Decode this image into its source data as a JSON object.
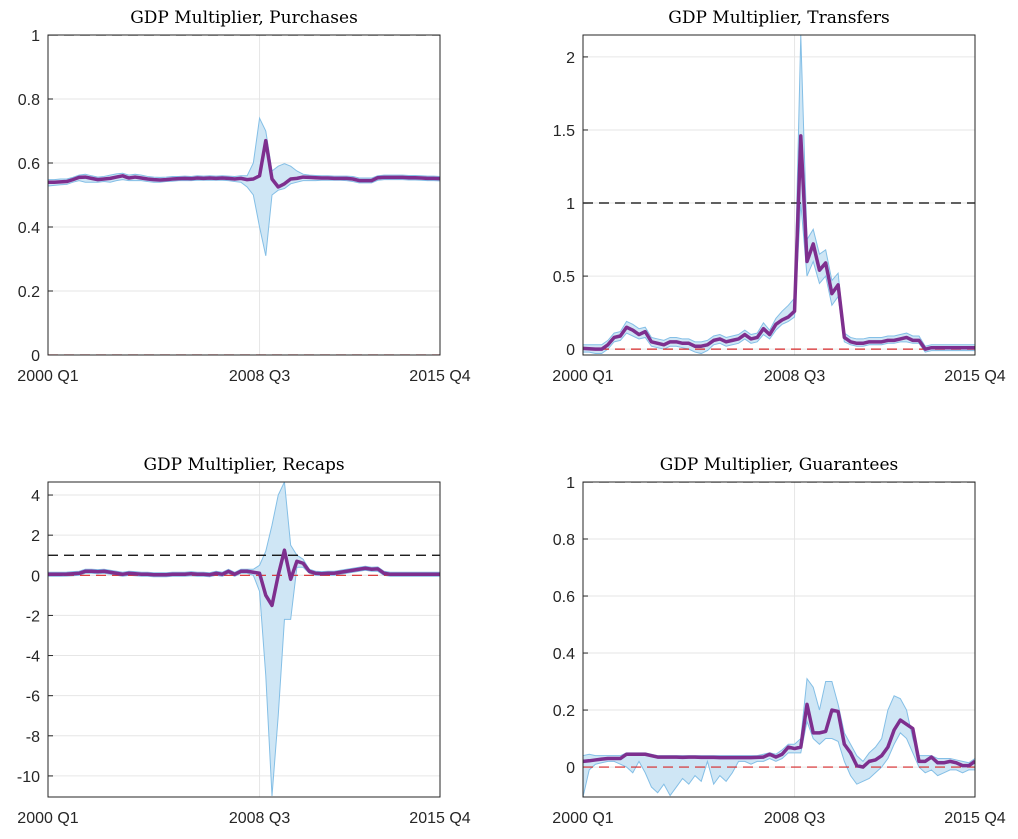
{
  "chart_data": [
    {
      "type": "line",
      "title": "GDP Multiplier, Purchases",
      "categories": [
        "2000 Q1",
        null,
        null,
        null,
        null,
        null,
        null,
        null,
        null,
        null,
        null,
        null,
        null,
        null,
        null,
        null,
        null,
        null,
        null,
        null,
        null,
        null,
        null,
        null,
        null,
        null,
        null,
        null,
        null,
        null,
        null,
        null,
        null,
        null,
        "2008 Q3",
        null,
        null,
        null,
        null,
        null,
        null,
        null,
        null,
        null,
        null,
        null,
        null,
        null,
        null,
        null,
        null,
        null,
        null,
        null,
        null,
        null,
        null,
        null,
        null,
        null,
        null,
        null,
        null,
        "2015 Q4"
      ],
      "ylim": [
        0,
        1
      ],
      "yticks": [
        0,
        0.2,
        0.4,
        0.6,
        0.8,
        1
      ],
      "grid": true,
      "series": [
        {
          "color": "#7e2f8e",
          "values": [
            0.54,
            0.54,
            0.541,
            0.542,
            0.548,
            0.555,
            0.556,
            0.552,
            0.548,
            0.55,
            0.552,
            0.556,
            0.56,
            0.553,
            0.556,
            0.553,
            0.55,
            0.548,
            0.547,
            0.548,
            0.55,
            0.551,
            0.552,
            0.551,
            0.553,
            0.552,
            0.553,
            0.552,
            0.553,
            0.552,
            0.55,
            0.552,
            0.548,
            0.55,
            0.56,
            0.67,
            0.55,
            0.525,
            0.535,
            0.55,
            0.552,
            0.556,
            0.555,
            0.554,
            0.553,
            0.553,
            0.552,
            0.552,
            0.552,
            0.55,
            0.545,
            0.545,
            0.545,
            0.554,
            0.555,
            0.555,
            0.555,
            0.555,
            0.554,
            0.554,
            0.553,
            0.552,
            0.552,
            0.551
          ]
        }
      ],
      "band": {
        "color": "#cfe6f5",
        "edge_color": "#84bfe6",
        "lower": [
          0.528,
          0.53,
          0.532,
          0.533,
          0.54,
          0.545,
          0.54,
          0.54,
          0.54,
          0.542,
          0.54,
          0.545,
          0.548,
          0.545,
          0.545,
          0.545,
          0.542,
          0.54,
          0.54,
          0.542,
          0.543,
          0.545,
          0.545,
          0.545,
          0.546,
          0.546,
          0.546,
          0.546,
          0.546,
          0.545,
          0.542,
          0.54,
          0.525,
          0.5,
          0.4,
          0.31,
          0.5,
          0.515,
          0.52,
          0.535,
          0.54,
          0.545,
          0.545,
          0.545,
          0.546,
          0.546,
          0.546,
          0.546,
          0.545,
          0.542,
          0.538,
          0.538,
          0.538,
          0.546,
          0.548,
          0.548,
          0.548,
          0.548,
          0.547,
          0.547,
          0.546,
          0.545,
          0.545,
          0.544
        ],
        "upper": [
          0.548,
          0.548,
          0.55,
          0.55,
          0.555,
          0.562,
          0.565,
          0.56,
          0.556,
          0.558,
          0.562,
          0.566,
          0.568,
          0.562,
          0.565,
          0.562,
          0.558,
          0.556,
          0.555,
          0.556,
          0.558,
          0.558,
          0.559,
          0.558,
          0.56,
          0.559,
          0.56,
          0.559,
          0.56,
          0.559,
          0.558,
          0.56,
          0.56,
          0.6,
          0.74,
          0.7,
          0.575,
          0.59,
          0.598,
          0.59,
          0.575,
          0.565,
          0.562,
          0.561,
          0.56,
          0.56,
          0.559,
          0.559,
          0.559,
          0.558,
          0.553,
          0.553,
          0.553,
          0.56,
          0.562,
          0.562,
          0.562,
          0.562,
          0.561,
          0.561,
          0.56,
          0.559,
          0.559,
          0.558
        ]
      },
      "reference_lines": [
        {
          "value": 1,
          "color": "#000000"
        },
        {
          "value": 0,
          "color": "#d62728"
        }
      ]
    },
    {
      "type": "line",
      "title": "GDP Multiplier, Transfers",
      "categories": [
        "2000 Q1",
        null,
        null,
        null,
        null,
        null,
        null,
        null,
        null,
        null,
        null,
        null,
        null,
        null,
        null,
        null,
        null,
        null,
        null,
        null,
        null,
        null,
        null,
        null,
        null,
        null,
        null,
        null,
        null,
        null,
        null,
        null,
        null,
        null,
        "2008 Q3",
        null,
        null,
        null,
        null,
        null,
        null,
        null,
        null,
        null,
        null,
        null,
        null,
        null,
        null,
        null,
        null,
        null,
        null,
        null,
        null,
        null,
        null,
        null,
        null,
        null,
        null,
        null,
        null,
        "2015 Q4"
      ],
      "ylim": [
        -0.04,
        2.15
      ],
      "yticks": [
        0,
        0.5,
        1,
        1.5,
        2
      ],
      "grid": true,
      "series": [
        {
          "color": "#7e2f8e",
          "values": [
            0.005,
            0.003,
            0.0,
            0.0,
            0.03,
            0.08,
            0.09,
            0.15,
            0.13,
            0.1,
            0.12,
            0.05,
            0.04,
            0.03,
            0.05,
            0.05,
            0.04,
            0.04,
            0.02,
            0.02,
            0.03,
            0.06,
            0.07,
            0.05,
            0.06,
            0.07,
            0.1,
            0.07,
            0.08,
            0.14,
            0.1,
            0.17,
            0.2,
            0.22,
            0.26,
            1.46,
            0.6,
            0.72,
            0.54,
            0.59,
            0.38,
            0.44,
            0.08,
            0.05,
            0.04,
            0.04,
            0.05,
            0.05,
            0.05,
            0.06,
            0.06,
            0.07,
            0.08,
            0.06,
            0.06,
            0.0,
            0.01,
            0.01,
            0.01,
            0.01,
            0.01,
            0.01,
            0.01,
            0.01
          ]
        }
      ],
      "band": {
        "color": "#cfe6f5",
        "edge_color": "#84bfe6",
        "lower": [
          -0.02,
          -0.02,
          -0.03,
          -0.03,
          0.0,
          0.05,
          0.06,
          0.11,
          0.09,
          0.07,
          0.08,
          0.02,
          0.01,
          0.0,
          0.02,
          0.02,
          0.01,
          0.0,
          -0.02,
          -0.03,
          -0.01,
          0.03,
          0.04,
          0.02,
          0.03,
          0.04,
          0.07,
          0.04,
          0.05,
          0.1,
          0.07,
          0.13,
          0.17,
          0.19,
          0.22,
          1.0,
          0.5,
          0.6,
          0.45,
          0.5,
          0.3,
          0.36,
          0.05,
          0.03,
          0.02,
          0.02,
          0.03,
          0.03,
          0.03,
          0.04,
          0.04,
          0.05,
          0.05,
          0.04,
          0.04,
          -0.02,
          -0.01,
          -0.01,
          -0.01,
          -0.01,
          -0.01,
          -0.01,
          -0.01,
          -0.01
        ],
        "upper": [
          0.03,
          0.03,
          0.03,
          0.03,
          0.06,
          0.11,
          0.12,
          0.19,
          0.17,
          0.14,
          0.15,
          0.08,
          0.07,
          0.06,
          0.08,
          0.08,
          0.07,
          0.07,
          0.05,
          0.05,
          0.06,
          0.09,
          0.1,
          0.08,
          0.09,
          0.1,
          0.13,
          0.1,
          0.11,
          0.18,
          0.13,
          0.21,
          0.26,
          0.3,
          0.35,
          2.15,
          0.75,
          0.82,
          0.65,
          0.68,
          0.47,
          0.52,
          0.11,
          0.08,
          0.07,
          0.07,
          0.08,
          0.08,
          0.08,
          0.09,
          0.09,
          0.1,
          0.11,
          0.09,
          0.09,
          0.02,
          0.03,
          0.03,
          0.03,
          0.03,
          0.03,
          0.03,
          0.03,
          0.03
        ]
      },
      "reference_lines": [
        {
          "value": 1,
          "color": "#000000"
        },
        {
          "value": 0,
          "color": "#d62728"
        }
      ]
    },
    {
      "type": "line",
      "title": "GDP Multiplier, Recaps",
      "categories": [
        "2000 Q1",
        null,
        null,
        null,
        null,
        null,
        null,
        null,
        null,
        null,
        null,
        null,
        null,
        null,
        null,
        null,
        null,
        null,
        null,
        null,
        null,
        null,
        null,
        null,
        null,
        null,
        null,
        null,
        null,
        null,
        null,
        null,
        null,
        null,
        "2008 Q3",
        null,
        null,
        null,
        null,
        null,
        null,
        null,
        null,
        null,
        null,
        null,
        null,
        null,
        null,
        null,
        null,
        null,
        null,
        null,
        null,
        null,
        null,
        null,
        null,
        null,
        null,
        null,
        null,
        "2015 Q4"
      ],
      "ylim": [
        -11.05,
        4.65
      ],
      "yticks": [
        -10,
        -8,
        -6,
        -4,
        -2,
        0,
        2,
        4
      ],
      "grid": true,
      "series": [
        {
          "color": "#7e2f8e",
          "values": [
            0.05,
            0.05,
            0.05,
            0.06,
            0.08,
            0.1,
            0.2,
            0.2,
            0.18,
            0.2,
            0.15,
            0.1,
            0.05,
            0.1,
            0.08,
            0.05,
            0.05,
            0.03,
            0.03,
            0.03,
            0.05,
            0.05,
            0.05,
            0.08,
            0.05,
            0.05,
            0.03,
            0.1,
            0.05,
            0.2,
            0.05,
            0.2,
            0.2,
            0.15,
            0.1,
            -1.0,
            -1.5,
            0.0,
            1.25,
            -0.2,
            0.7,
            0.6,
            0.2,
            0.1,
            0.08,
            0.1,
            0.1,
            0.15,
            0.2,
            0.25,
            0.3,
            0.35,
            0.3,
            0.32,
            0.1,
            0.05,
            0.05,
            0.05,
            0.05,
            0.05,
            0.05,
            0.05,
            0.05,
            0.05
          ]
        }
      ],
      "band": {
        "color": "#cfe6f5",
        "edge_color": "#84bfe6",
        "lower": [
          -0.05,
          -0.05,
          -0.05,
          -0.04,
          -0.02,
          0.0,
          0.1,
          0.1,
          0.08,
          0.1,
          0.05,
          0.0,
          -0.05,
          0.0,
          -0.02,
          -0.05,
          -0.05,
          -0.07,
          -0.07,
          -0.07,
          -0.05,
          -0.05,
          -0.05,
          -0.02,
          -0.05,
          -0.05,
          -0.07,
          0.0,
          -0.05,
          0.1,
          -0.05,
          0.1,
          0.1,
          0.0,
          -0.8,
          -5,
          -11,
          -7,
          -2.2,
          -2.2,
          0.4,
          0.4,
          0.1,
          0.0,
          0.0,
          0.0,
          0.0,
          0.05,
          0.1,
          0.15,
          0.2,
          0.25,
          0.2,
          0.2,
          0.0,
          -0.05,
          -0.05,
          -0.05,
          -0.05,
          -0.05,
          -0.05,
          -0.05,
          -0.05,
          -0.05
        ],
        "upper": [
          0.15,
          0.15,
          0.15,
          0.16,
          0.18,
          0.2,
          0.3,
          0.3,
          0.28,
          0.3,
          0.25,
          0.2,
          0.15,
          0.2,
          0.18,
          0.15,
          0.15,
          0.13,
          0.13,
          0.13,
          0.15,
          0.15,
          0.15,
          0.18,
          0.15,
          0.15,
          0.13,
          0.2,
          0.15,
          0.3,
          0.15,
          0.3,
          0.3,
          0.3,
          0.5,
          1.2,
          2.5,
          4.0,
          4.65,
          1.5,
          1.0,
          0.8,
          0.3,
          0.2,
          0.18,
          0.2,
          0.2,
          0.25,
          0.3,
          0.35,
          0.4,
          0.45,
          0.4,
          0.42,
          0.2,
          0.15,
          0.15,
          0.15,
          0.15,
          0.15,
          0.15,
          0.15,
          0.15,
          0.15
        ]
      },
      "reference_lines": [
        {
          "value": 1,
          "color": "#000000"
        },
        {
          "value": 0,
          "color": "#d62728"
        }
      ]
    },
    {
      "type": "line",
      "title": "GDP Multiplier, Guarantees",
      "categories": [
        "2000 Q1",
        null,
        null,
        null,
        null,
        null,
        null,
        null,
        null,
        null,
        null,
        null,
        null,
        null,
        null,
        null,
        null,
        null,
        null,
        null,
        null,
        null,
        null,
        null,
        null,
        null,
        null,
        null,
        null,
        null,
        null,
        null,
        null,
        null,
        "2008 Q3",
        null,
        null,
        null,
        null,
        null,
        null,
        null,
        null,
        null,
        null,
        null,
        null,
        null,
        null,
        null,
        null,
        null,
        null,
        null,
        null,
        null,
        null,
        null,
        null,
        null,
        null,
        null,
        null,
        "2015 Q4"
      ],
      "ylim": [
        -0.105,
        1
      ],
      "yticks": [
        0,
        0.2,
        0.4,
        0.6,
        0.8,
        1
      ],
      "grid": true,
      "series": [
        {
          "color": "#7e2f8e",
          "values": [
            0.02,
            0.022,
            0.025,
            0.028,
            0.03,
            0.03,
            0.03,
            0.045,
            0.045,
            0.045,
            0.045,
            0.04,
            0.035,
            0.035,
            0.035,
            0.035,
            0.034,
            0.035,
            0.035,
            0.034,
            0.034,
            0.034,
            0.033,
            0.033,
            0.033,
            0.033,
            0.033,
            0.033,
            0.034,
            0.035,
            0.045,
            0.035,
            0.045,
            0.07,
            0.065,
            0.07,
            0.22,
            0.12,
            0.12,
            0.125,
            0.2,
            0.195,
            0.08,
            0.05,
            0.005,
            0.0,
            0.02,
            0.025,
            0.04,
            0.07,
            0.13,
            0.165,
            0.15,
            0.135,
            0.02,
            0.02,
            0.035,
            0.015,
            0.015,
            0.02,
            0.015,
            0.005,
            0.005,
            0.02
          ]
        }
      ],
      "band": {
        "color": "#cfe6f5",
        "edge_color": "#84bfe6",
        "lower": [
          -0.105,
          -0.01,
          0.01,
          0.015,
          0.02,
          0.02,
          0.01,
          0.0,
          -0.02,
          0.02,
          -0.02,
          -0.07,
          -0.09,
          -0.06,
          -0.1,
          -0.07,
          -0.04,
          -0.06,
          -0.03,
          -0.05,
          0.02,
          -0.06,
          -0.03,
          -0.05,
          -0.02,
          0.02,
          0.02,
          0.01,
          0.02,
          0.02,
          0.03,
          0.02,
          0.03,
          0.05,
          0.05,
          0.05,
          0.16,
          0.1,
          0.08,
          0.1,
          0.1,
          0.09,
          0.02,
          -0.03,
          -0.06,
          -0.05,
          -0.04,
          -0.02,
          0.0,
          0.03,
          0.08,
          0.12,
          0.1,
          0.05,
          0.0,
          -0.02,
          -0.01,
          -0.03,
          -0.02,
          -0.01,
          -0.01,
          -0.02,
          -0.01,
          -0.01
        ],
        "upper": [
          0.04,
          0.045,
          0.04,
          0.04,
          0.04,
          0.04,
          0.04,
          0.05,
          0.05,
          0.05,
          0.05,
          0.045,
          0.04,
          0.04,
          0.04,
          0.04,
          0.04,
          0.04,
          0.04,
          0.04,
          0.04,
          0.04,
          0.04,
          0.04,
          0.04,
          0.04,
          0.04,
          0.04,
          0.04,
          0.045,
          0.05,
          0.045,
          0.06,
          0.08,
          0.08,
          0.1,
          0.31,
          0.28,
          0.2,
          0.3,
          0.3,
          0.22,
          0.12,
          0.08,
          0.04,
          0.02,
          0.05,
          0.07,
          0.1,
          0.2,
          0.25,
          0.24,
          0.2,
          0.1,
          0.04,
          0.04,
          0.04,
          0.03,
          0.03,
          0.03,
          0.025,
          0.02,
          0.015,
          0.03
        ]
      },
      "reference_lines": [
        {
          "value": 1,
          "color": "#000000"
        },
        {
          "value": 0,
          "color": "#d62728"
        }
      ]
    }
  ]
}
